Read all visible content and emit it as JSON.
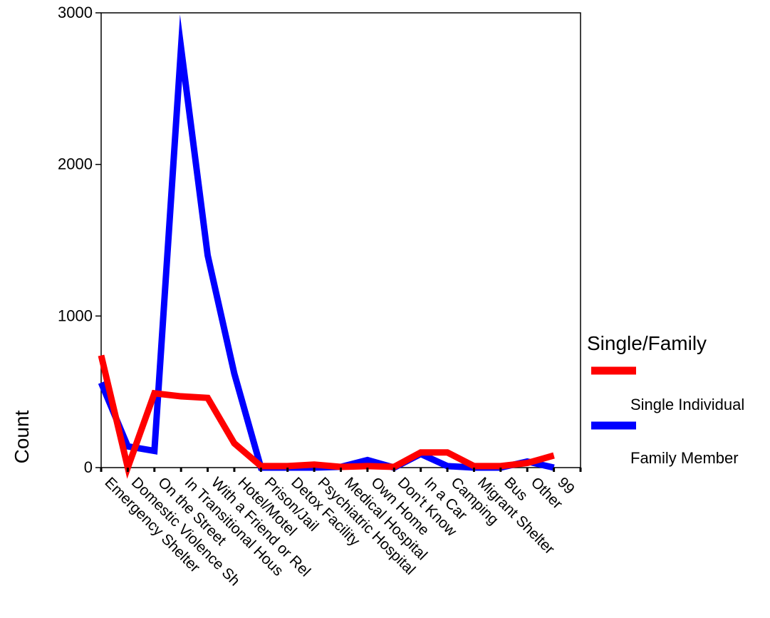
{
  "chart_data": {
    "type": "line",
    "categories": [
      "Emergency Shelter",
      "Domestic Violence Sh",
      "On the Street",
      "In Transitional Hous",
      "With a Friend or Rel",
      "Hotel/Motel",
      "Prison/Jail",
      "Detox Facility",
      "Psychiatric Hospital",
      "Medical Hospital",
      "Own Home",
      "Don't Know",
      "In a Car",
      "Camping",
      "Migrant Shelter",
      "Bus",
      "Other",
      "99"
    ],
    "series": [
      {
        "name": "Single Individual",
        "color": "#ff0000",
        "values": [
          740,
          0,
          490,
          470,
          460,
          160,
          10,
          10,
          20,
          5,
          10,
          5,
          100,
          100,
          10,
          10,
          30,
          80
        ]
      },
      {
        "name": "Family Member",
        "color": "#0000ff",
        "values": [
          560,
          140,
          110,
          2770,
          1400,
          620,
          0,
          0,
          0,
          5,
          50,
          0,
          90,
          10,
          0,
          0,
          40,
          0
        ]
      }
    ],
    "title": "",
    "xlabel": "",
    "ylabel": "Count",
    "ylim": [
      0,
      3000
    ],
    "yticks": [
      0,
      1000,
      2000,
      3000
    ],
    "grid": false,
    "legend": {
      "title": "Single/Family",
      "placement": "right"
    }
  }
}
